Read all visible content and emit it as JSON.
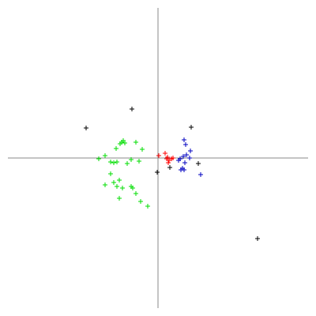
{
  "chart_data": {
    "type": "scatter",
    "xlim": [
      -190,
      190
    ],
    "ylim": [
      -190,
      190
    ],
    "series": [
      {
        "color": "#000000",
        "x": [
          -33,
          -91,
          42,
          -1,
          15,
          51,
          126
        ],
        "y": [
          62,
          38,
          39,
          -18,
          -12,
          -7,
          -102
        ]
      },
      {
        "color": "#ff0000",
        "x": [
          1,
          9,
          12,
          14,
          17,
          13,
          19,
          11
        ],
        "y": [
          3,
          6,
          1,
          -3,
          -1,
          -6,
          0,
          -1
        ]
      },
      {
        "color": "#0000c0",
        "x": [
          33,
          35,
          41,
          36,
          32,
          28,
          26,
          34,
          31,
          29,
          33,
          54,
          40
        ],
        "y": [
          23,
          17,
          9,
          4,
          2,
          -1,
          -3,
          -6,
          -13,
          -15,
          -15,
          -21,
          0
        ]
      },
      {
        "color": "#00dd00",
        "x": [
          -44,
          -42,
          -48,
          -46,
          -28,
          -53,
          -20,
          -67,
          -75,
          -34,
          -24,
          -60,
          -52,
          -56,
          -39,
          -60,
          -49,
          -56,
          -67,
          -52,
          -45,
          -34,
          -32,
          -28,
          -49,
          -22,
          -13
        ],
        "y": [
          22,
          19,
          18,
          20,
          20,
          12,
          11,
          3,
          -1,
          -2,
          -4,
          -5,
          -5,
          -6,
          -7,
          -20,
          -28,
          -31,
          -34,
          -36,
          -38,
          -36,
          -38,
          -45,
          -51,
          -55,
          -61
        ]
      }
    ]
  }
}
